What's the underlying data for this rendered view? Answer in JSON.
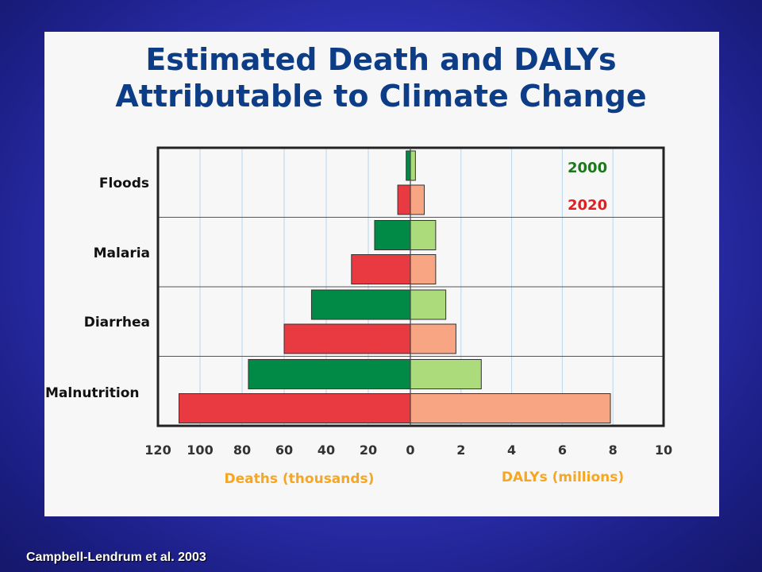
{
  "slide": {
    "title_line1": "Estimated Death and DALYs",
    "title_line2": "Attributable to Climate Change",
    "citation": "Campbell-Lendrum et al. 2003"
  },
  "colors": {
    "background": "#2f33b8",
    "panel": "#f7f7f7",
    "title": "#0c3d86",
    "deaths_2000": "#008a45",
    "deaths_2020": "#e83a40",
    "dalys_2000": "#acdb7c",
    "dalys_2020": "#f7a583",
    "axis_label": "#f5a623",
    "legend_2000": "#1a7a1a",
    "legend_2020": "#e02020"
  },
  "chart_data": {
    "type": "bar",
    "orientation": "horizontal",
    "categories": [
      "Floods",
      "Malaria",
      "Diarrhea",
      "Malnutrition"
    ],
    "series": [
      {
        "name": "2000",
        "deaths_thousands": [
          2,
          17,
          47,
          77
        ],
        "dalys_millions": [
          0.2,
          1.0,
          1.4,
          2.8
        ]
      },
      {
        "name": "2020",
        "deaths_thousands": [
          6,
          28,
          60,
          110
        ],
        "dalys_millions": [
          0.55,
          1.0,
          1.8,
          7.9
        ]
      }
    ],
    "left_axis": {
      "label": "Deaths (thousands)",
      "range": [
        0,
        120
      ],
      "ticks": [
        "120",
        "100",
        "80",
        "60",
        "40",
        "20",
        "0"
      ]
    },
    "right_axis": {
      "label": "DALYs (millions)",
      "range": [
        0,
        10
      ],
      "ticks": [
        "2",
        "4",
        "6",
        "8",
        "10"
      ]
    },
    "legend": {
      "position": "top-right",
      "entries": [
        "2000",
        "2020"
      ]
    },
    "grid": true
  }
}
